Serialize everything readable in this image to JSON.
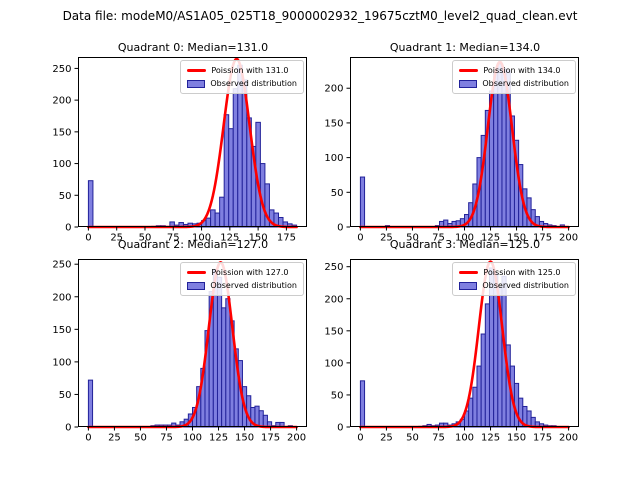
{
  "figure": {
    "title": "Data file: modeM0/AS1A05_025T18_9000002932_19675cztM0_level2_quad_clean.evt"
  },
  "colors": {
    "bar_fill": "#7f7fe0",
    "bar_edge": "#22229a",
    "curve": "#ff0000",
    "axis": "#000000",
    "text": "#000000",
    "legend_border": "#cccccc"
  },
  "chart_data": [
    {
      "type": "histogram",
      "quadrant": "Quadrant 0",
      "median": 131.0,
      "title": "Quadrant 0: Median=131.0",
      "legend": {
        "line": "Poission with 131.0",
        "patch": "Observed distribution"
      },
      "xlabel": "",
      "ylabel": "",
      "xlim": [
        -9.2,
        193.2
      ],
      "ylim": [
        0,
        268
      ],
      "xticks": [
        0,
        25,
        50,
        75,
        100,
        125,
        150,
        175
      ],
      "yticks": [
        0,
        50,
        100,
        150,
        200,
        250
      ],
      "bin_start": 0,
      "bin_width": 4,
      "counts": [
        73,
        0,
        0,
        0,
        0,
        0,
        0,
        0,
        0,
        0,
        0,
        0,
        0,
        0,
        1,
        2,
        2,
        1,
        8,
        3,
        7,
        4,
        6,
        5,
        6,
        10,
        14,
        27,
        22,
        47,
        177,
        155,
        218,
        255,
        232,
        172,
        127,
        165,
        100,
        68,
        27,
        22,
        15,
        8,
        5,
        3
      ],
      "poisson": {
        "lambda": 131.0,
        "amplitude": 265
      }
    },
    {
      "type": "histogram",
      "quadrant": "Quadrant 1",
      "median": 134.0,
      "title": "Quadrant 1: Median=134.0",
      "legend": {
        "line": "Poission with 134.0",
        "patch": "Observed distribution"
      },
      "xlabel": "",
      "ylabel": "",
      "xlim": [
        -10,
        210
      ],
      "ylim": [
        0,
        245
      ],
      "xticks": [
        0,
        25,
        50,
        75,
        100,
        125,
        150,
        175,
        200
      ],
      "yticks": [
        0,
        50,
        100,
        150,
        200
      ],
      "bin_start": 0,
      "bin_width": 4,
      "counts": [
        72,
        0,
        0,
        0,
        0,
        0,
        2,
        0,
        0,
        0,
        0,
        0,
        0,
        0,
        0,
        0,
        0,
        0,
        2,
        8,
        10,
        5,
        8,
        9,
        12,
        18,
        35,
        62,
        100,
        132,
        168,
        196,
        222,
        235,
        228,
        225,
        160,
        125,
        90,
        55,
        42,
        25,
        15,
        8,
        5,
        3,
        2,
        0,
        3,
        0
      ],
      "poisson": {
        "lambda": 134.0,
        "amplitude": 238
      }
    },
    {
      "type": "histogram",
      "quadrant": "Quadrant 2",
      "median": 127.0,
      "title": "Quadrant 2: Median=127.0",
      "legend": {
        "line": "Poission with 127.0",
        "patch": "Observed distribution"
      },
      "xlabel": "",
      "ylabel": "",
      "xlim": [
        -10,
        210
      ],
      "ylim": [
        0,
        258
      ],
      "xticks": [
        0,
        25,
        50,
        75,
        100,
        125,
        150,
        175,
        200
      ],
      "yticks": [
        0,
        50,
        100,
        150,
        200,
        250
      ],
      "bin_start": 0,
      "bin_width": 4,
      "counts": [
        72,
        0,
        0,
        0,
        0,
        0,
        0,
        0,
        0,
        0,
        0,
        0,
        0,
        0,
        0,
        2,
        3,
        3,
        3,
        3,
        6,
        3,
        8,
        12,
        20,
        30,
        62,
        90,
        148,
        208,
        242,
        230,
        183,
        197,
        163,
        120,
        102,
        62,
        48,
        30,
        32,
        25,
        18,
        8,
        2,
        7,
        7,
        0,
        2,
        0
      ],
      "poisson": {
        "lambda": 127.0,
        "amplitude": 253
      }
    },
    {
      "type": "histogram",
      "quadrant": "Quadrant 3",
      "median": 125.0,
      "title": "Quadrant 3: Median=125.0",
      "legend": {
        "line": "Poission with 125.0",
        "patch": "Observed distribution"
      },
      "xlabel": "",
      "ylabel": "",
      "xlim": [
        -10,
        210
      ],
      "ylim": [
        0,
        262
      ],
      "xticks": [
        0,
        25,
        50,
        75,
        100,
        125,
        150,
        175,
        200
      ],
      "yticks": [
        0,
        50,
        100,
        150,
        200,
        250
      ],
      "bin_start": 0,
      "bin_width": 4,
      "counts": [
        72,
        0,
        0,
        0,
        0,
        0,
        0,
        0,
        0,
        0,
        0,
        0,
        0,
        0,
        1,
        2,
        4,
        2,
        3,
        6,
        6,
        3,
        5,
        8,
        12,
        25,
        45,
        62,
        95,
        145,
        192,
        248,
        240,
        218,
        235,
        128,
        95,
        68,
        45,
        32,
        25,
        15,
        8,
        5,
        3,
        2,
        2,
        0,
        0,
        0
      ],
      "poisson": {
        "lambda": 125.0,
        "amplitude": 258
      }
    }
  ]
}
